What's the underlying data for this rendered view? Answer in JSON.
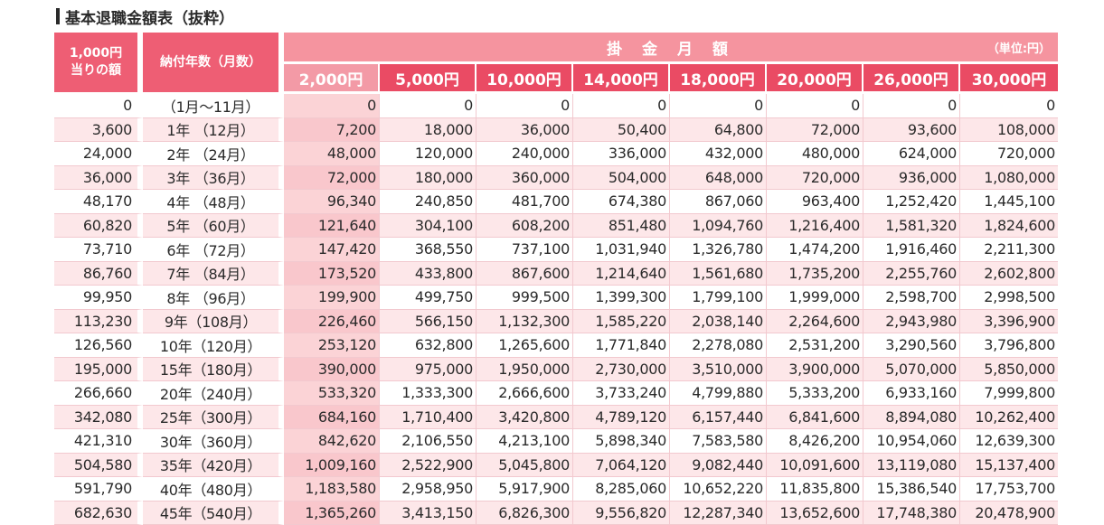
{
  "title": "基本退職金額表（抜粋）",
  "header": {
    "base_label_1": "1,000円",
    "base_label_2": "当りの額",
    "years_label": "納付年数（月数）",
    "monthly_label": "掛 金 月 額",
    "unit": "（単位:円）",
    "amounts": [
      "2,000円",
      "5,000円",
      "10,000円",
      "14,000円",
      "18,000円",
      "20,000円",
      "26,000円",
      "30,000円"
    ]
  },
  "rows": [
    {
      "base": "0",
      "years": "（1月～11月）",
      "v": [
        "0",
        "0",
        "0",
        "0",
        "0",
        "0",
        "0",
        "0"
      ]
    },
    {
      "base": "3,600",
      "years": "1年 （12月）",
      "v": [
        "7,200",
        "18,000",
        "36,000",
        "50,400",
        "64,800",
        "72,000",
        "93,600",
        "108,000"
      ]
    },
    {
      "base": "24,000",
      "years": "2年 （24月）",
      "v": [
        "48,000",
        "120,000",
        "240,000",
        "336,000",
        "432,000",
        "480,000",
        "624,000",
        "720,000"
      ]
    },
    {
      "base": "36,000",
      "years": "3年 （36月）",
      "v": [
        "72,000",
        "180,000",
        "360,000",
        "504,000",
        "648,000",
        "720,000",
        "936,000",
        "1,080,000"
      ]
    },
    {
      "base": "48,170",
      "years": "4年 （48月）",
      "v": [
        "96,340",
        "240,850",
        "481,700",
        "674,380",
        "867,060",
        "963,400",
        "1,252,420",
        "1,445,100"
      ]
    },
    {
      "base": "60,820",
      "years": "5年 （60月）",
      "v": [
        "121,640",
        "304,100",
        "608,200",
        "851,480",
        "1,094,760",
        "1,216,400",
        "1,581,320",
        "1,824,600"
      ]
    },
    {
      "base": "73,710",
      "years": "6年 （72月）",
      "v": [
        "147,420",
        "368,550",
        "737,100",
        "1,031,940",
        "1,326,780",
        "1,474,200",
        "1,916,460",
        "2,211,300"
      ]
    },
    {
      "base": "86,760",
      "years": "7年 （84月）",
      "v": [
        "173,520",
        "433,800",
        "867,600",
        "1,214,640",
        "1,561,680",
        "1,735,200",
        "2,255,760",
        "2,602,800"
      ]
    },
    {
      "base": "99,950",
      "years": "8年 （96月）",
      "v": [
        "199,900",
        "499,750",
        "999,500",
        "1,399,300",
        "1,799,100",
        "1,999,000",
        "2,598,700",
        "2,998,500"
      ]
    },
    {
      "base": "113,230",
      "years": "9年（108月）",
      "v": [
        "226,460",
        "566,150",
        "1,132,300",
        "1,585,220",
        "2,038,140",
        "2,264,600",
        "2,943,980",
        "3,396,900"
      ]
    },
    {
      "base": "126,560",
      "years": "10年（120月）",
      "v": [
        "253,120",
        "632,800",
        "1,265,600",
        "1,771,840",
        "2,278,080",
        "2,531,200",
        "3,290,560",
        "3,796,800"
      ]
    },
    {
      "base": "195,000",
      "years": "15年（180月）",
      "v": [
        "390,000",
        "975,000",
        "1,950,000",
        "2,730,000",
        "3,510,000",
        "3,900,000",
        "5,070,000",
        "5,850,000"
      ]
    },
    {
      "base": "266,660",
      "years": "20年（240月）",
      "v": [
        "533,320",
        "1,333,300",
        "2,666,600",
        "3,733,240",
        "4,799,880",
        "5,333,200",
        "6,933,160",
        "7,999,800"
      ]
    },
    {
      "base": "342,080",
      "years": "25年（300月）",
      "v": [
        "684,160",
        "1,710,400",
        "3,420,800",
        "4,789,120",
        "6,157,440",
        "6,841,600",
        "8,894,080",
        "10,262,400"
      ]
    },
    {
      "base": "421,310",
      "years": "30年（360月）",
      "v": [
        "842,620",
        "2,106,550",
        "4,213,100",
        "5,898,340",
        "7,583,580",
        "8,426,200",
        "10,954,060",
        "12,639,300"
      ]
    },
    {
      "base": "504,580",
      "years": "35年（420月）",
      "v": [
        "1,009,160",
        "2,522,900",
        "5,045,800",
        "7,064,120",
        "9,082,440",
        "10,091,600",
        "13,119,080",
        "15,137,400"
      ]
    },
    {
      "base": "591,790",
      "years": "40年（480月）",
      "v": [
        "1,183,580",
        "2,958,950",
        "5,917,900",
        "8,285,060",
        "10,652,220",
        "11,835,800",
        "15,386,540",
        "17,753,700"
      ]
    },
    {
      "base": "682,630",
      "years": "45年（540月）",
      "v": [
        "1,365,260",
        "3,413,150",
        "6,826,300",
        "9,556,820",
        "12,287,340",
        "13,652,600",
        "17,748,380",
        "20,478,900"
      ]
    }
  ],
  "colors": {
    "header_dark": "#ea4b64",
    "header_light": "#f5949f",
    "row_alt": "#fde7e9",
    "col_2000": "#fbd3d6"
  }
}
